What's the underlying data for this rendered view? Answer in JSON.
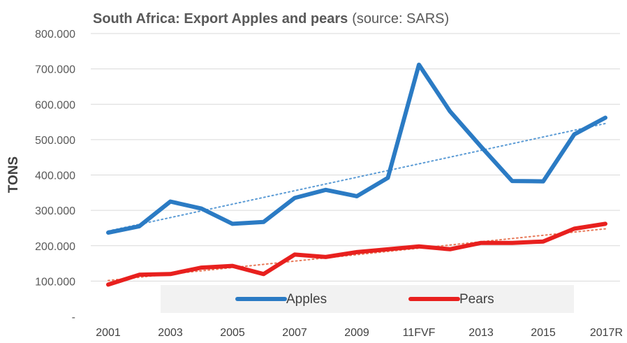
{
  "chart_data": {
    "type": "line",
    "title": "South Africa: Export Apples and pears",
    "subtitle": "(source: SARS)",
    "ylabel": "TONS",
    "xlabel": "",
    "ylim": [
      0,
      800000
    ],
    "y_ticks": [
      0,
      100000,
      200000,
      300000,
      400000,
      500000,
      600000,
      700000,
      800000
    ],
    "y_tick_labels": [
      "-",
      "100.000",
      "200.000",
      "300.000",
      "400.000",
      "500.000",
      "600.000",
      "700.000",
      "800.000"
    ],
    "grid": true,
    "legend_position": "bottom-center",
    "categories": [
      "2001",
      "2002",
      "2003",
      "2004",
      "2005",
      "2006",
      "2007",
      "2008",
      "2009",
      "2010",
      "11FVF",
      "2012",
      "2013",
      "2014",
      "2015",
      "2016",
      "2017R"
    ],
    "x_tick_labels": [
      "2001",
      "",
      "2003",
      "",
      "2005",
      "",
      "2007",
      "",
      "2009",
      "",
      "11FVF",
      "",
      "2013",
      "",
      "2015",
      "",
      "2017R"
    ],
    "series": [
      {
        "name": "Apples",
        "color": "#2b7bc4",
        "values": [
          237000,
          255000,
          325000,
          305000,
          262000,
          267000,
          335000,
          358000,
          340000,
          392000,
          712000,
          580000,
          480000,
          383000,
          382000,
          515000,
          562000
        ],
        "trendline": true,
        "trend_color": "#5b9bd5"
      },
      {
        "name": "Pears",
        "color": "#e8201e",
        "values": [
          90000,
          118000,
          120000,
          138000,
          143000,
          120000,
          175000,
          168000,
          182000,
          190000,
          198000,
          190000,
          208000,
          208000,
          212000,
          248000,
          262000
        ],
        "trendline": true,
        "trend_color": "#e87a5a"
      }
    ]
  }
}
